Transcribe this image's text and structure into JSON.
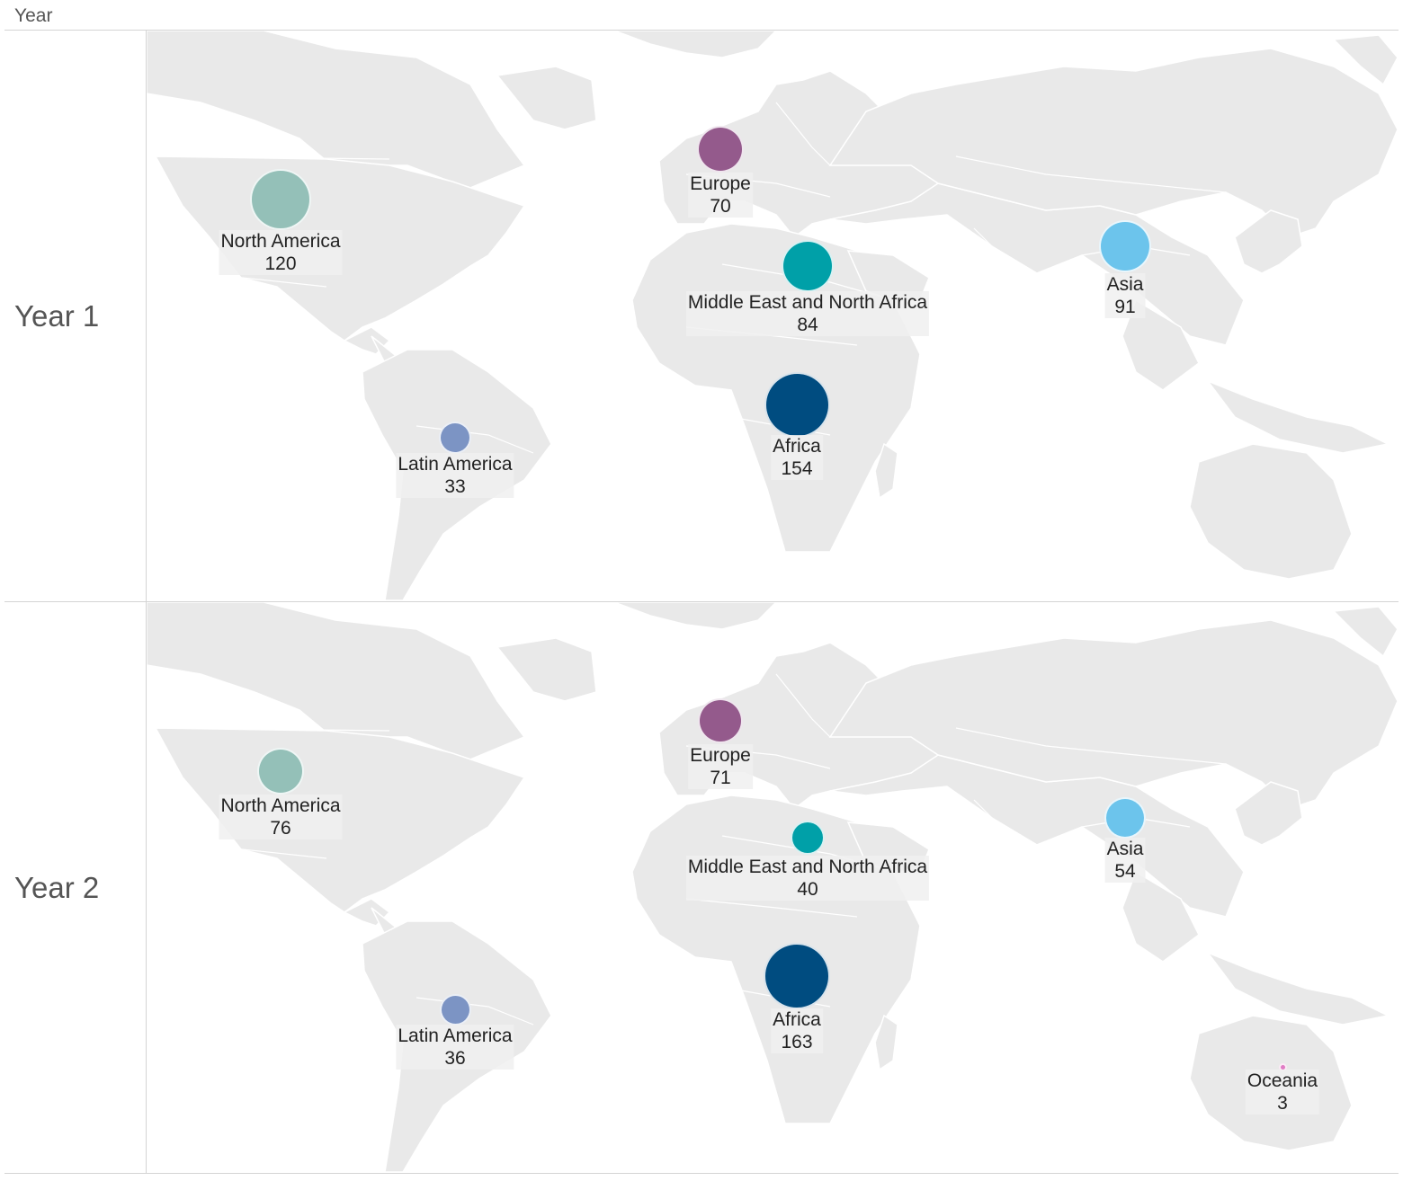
{
  "header": {
    "title": "Year"
  },
  "panels": [
    {
      "label": "Year 1",
      "regions": [
        {
          "name": "North America",
          "value": "120",
          "color": "#94c0b8"
        },
        {
          "name": "Europe",
          "value": "70",
          "color": "#945a8c"
        },
        {
          "name": "Middle East and North Africa",
          "value": "84",
          "color": "#00a0a8"
        },
        {
          "name": "Asia",
          "value": "91",
          "color": "#6cc4ec"
        },
        {
          "name": "Africa",
          "value": "154",
          "color": "#004c80"
        },
        {
          "name": "Latin America",
          "value": "33",
          "color": "#7c94c4"
        }
      ]
    },
    {
      "label": "Year 2",
      "regions": [
        {
          "name": "North America",
          "value": "76",
          "color": "#94c0b8"
        },
        {
          "name": "Europe",
          "value": "71",
          "color": "#945a8c"
        },
        {
          "name": "Middle East and North Africa",
          "value": "40",
          "color": "#00a0a8"
        },
        {
          "name": "Asia",
          "value": "54",
          "color": "#6cc4ec"
        },
        {
          "name": "Africa",
          "value": "163",
          "color": "#004c80"
        },
        {
          "name": "Latin America",
          "value": "36",
          "color": "#7c94c4"
        },
        {
          "name": "Oceania",
          "value": "3",
          "color": "#e07cc4"
        }
      ]
    }
  ]
}
